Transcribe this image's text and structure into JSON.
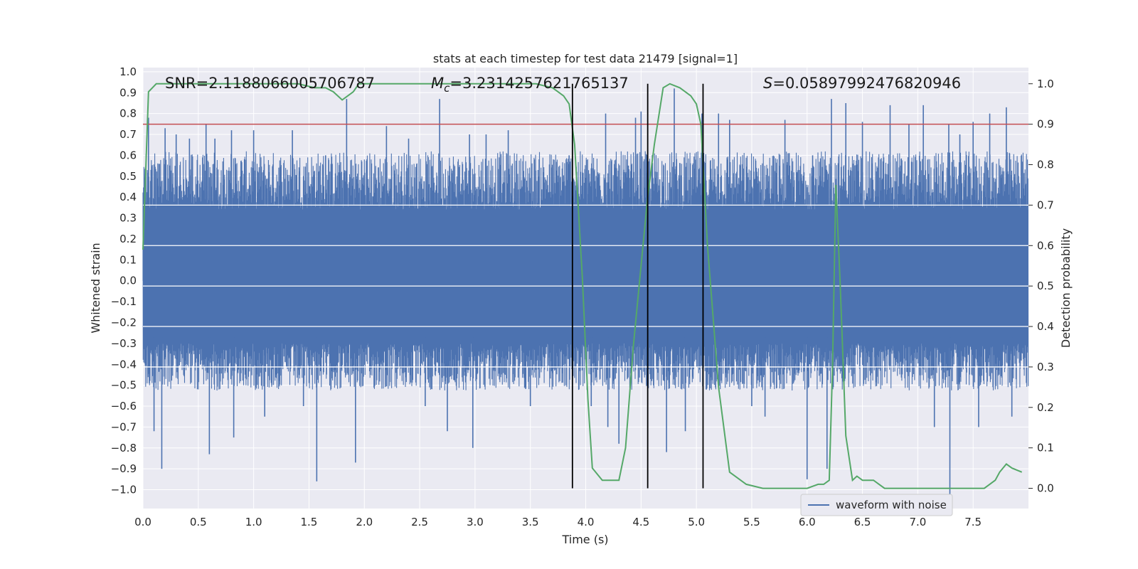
{
  "chart_data": {
    "type": "line",
    "title": "stats at each timestep for test data 21479 [signal=1]",
    "xlabel": "Time (s)",
    "ylabel_left": "Whitened strain",
    "ylabel_right": "Detection probability",
    "xlim": [
      0,
      8
    ],
    "ylim_left": [
      -1.09,
      1.02
    ],
    "ylim_right": [
      -0.05,
      1.04
    ],
    "x_ticks": [
      "0.0",
      "0.5",
      "1.0",
      "1.5",
      "2.0",
      "2.5",
      "3.0",
      "3.5",
      "4.0",
      "4.5",
      "5.0",
      "5.5",
      "6.0",
      "6.5",
      "7.0",
      "7.5"
    ],
    "y_left_ticks": [
      "1.0",
      "0.9",
      "0.8",
      "0.7",
      "0.6",
      "0.5",
      "0.4",
      "0.3",
      "0.2",
      "0.1",
      "0.0",
      "−0.1",
      "−0.2",
      "−0.3",
      "−0.4",
      "−0.5",
      "−0.6",
      "−0.7",
      "−0.8",
      "−0.9",
      "−1.0"
    ],
    "y_right_ticks": [
      "0.0",
      "0.1",
      "0.2",
      "0.3",
      "0.4",
      "0.5",
      "0.6",
      "0.7",
      "0.8",
      "0.9",
      "1.0"
    ],
    "annotations": {
      "snr": "SNR=2.1188066005706787",
      "mc_symbol": "M",
      "mc_sub": "c",
      "mc_value": "=3.2314257621765137",
      "s_symbol": "S",
      "s_value": "=0.05897992476820946"
    },
    "legend": {
      "label": "waveform with noise",
      "location": "lower-right"
    },
    "threshold": 0.9,
    "vertical_lines": [
      3.88,
      4.56,
      5.06
    ],
    "series": [
      {
        "name": "waveform with noise",
        "color": "#4c72b0",
        "envelope_pos": 0.62,
        "envelope_neg": -0.5,
        "spikes": [
          [
            0.05,
            0.78
          ],
          [
            0.1,
            -0.72
          ],
          [
            0.17,
            -0.9
          ],
          [
            0.2,
            0.73
          ],
          [
            0.3,
            0.7
          ],
          [
            0.42,
            0.68
          ],
          [
            0.57,
            0.75
          ],
          [
            0.6,
            -0.83
          ],
          [
            0.65,
            0.68
          ],
          [
            0.8,
            0.72
          ],
          [
            0.82,
            -0.75
          ],
          [
            1.0,
            0.72
          ],
          [
            1.1,
            -0.65
          ],
          [
            1.35,
            0.72
          ],
          [
            1.45,
            -0.6
          ],
          [
            1.57,
            -0.96
          ],
          [
            1.65,
            0.6
          ],
          [
            1.84,
            0.87
          ],
          [
            1.92,
            -0.87
          ],
          [
            2.2,
            0.74
          ],
          [
            2.4,
            0.68
          ],
          [
            2.55,
            -0.6
          ],
          [
            2.68,
            0.87
          ],
          [
            2.75,
            -0.72
          ],
          [
            2.95,
            0.7
          ],
          [
            2.98,
            -0.8
          ],
          [
            3.1,
            0.7
          ],
          [
            3.3,
            0.72
          ],
          [
            3.5,
            -0.6
          ],
          [
            3.85,
            0.6
          ],
          [
            4.05,
            -0.6
          ],
          [
            4.18,
            0.8
          ],
          [
            4.2,
            -0.7
          ],
          [
            4.3,
            -0.78
          ],
          [
            4.45,
            0.78
          ],
          [
            4.5,
            0.81
          ],
          [
            4.55,
            -0.5
          ],
          [
            4.73,
            -0.82
          ],
          [
            4.8,
            0.92
          ],
          [
            4.9,
            -0.72
          ],
          [
            5.05,
            0.8
          ],
          [
            5.2,
            0.8
          ],
          [
            5.3,
            0.77
          ],
          [
            5.5,
            -0.6
          ],
          [
            5.62,
            -0.65
          ],
          [
            5.8,
            0.77
          ],
          [
            6.0,
            -0.95
          ],
          [
            6.05,
            0.6
          ],
          [
            6.18,
            -0.9
          ],
          [
            6.22,
            0.87
          ],
          [
            6.35,
            0.85
          ],
          [
            6.5,
            0.76
          ],
          [
            6.75,
            0.84
          ],
          [
            6.92,
            0.75
          ],
          [
            7.05,
            0.84
          ],
          [
            7.15,
            -0.7
          ],
          [
            7.28,
            0.75
          ],
          [
            7.29,
            -1.04
          ],
          [
            7.38,
            0.7
          ],
          [
            7.5,
            0.76
          ],
          [
            7.55,
            -0.7
          ],
          [
            7.65,
            0.8
          ],
          [
            7.8,
            0.83
          ],
          [
            7.85,
            -0.65
          ]
        ]
      },
      {
        "name": "Detection probability",
        "color": "#55a868",
        "x": [
          0,
          0.05,
          0.12,
          0.3,
          0.5,
          0.8,
          1.0,
          1.2,
          1.4,
          1.55,
          1.65,
          1.72,
          1.8,
          1.85,
          1.9,
          1.95,
          2.05,
          2.3,
          2.8,
          3.3,
          3.55,
          3.7,
          3.8,
          3.85,
          3.9,
          3.97,
          4.02,
          4.06,
          4.15,
          4.22,
          4.3,
          4.36,
          4.43,
          4.5,
          4.56,
          4.62,
          4.7,
          4.76,
          4.85,
          4.95,
          5.0,
          5.04,
          5.1,
          5.2,
          5.3,
          5.45,
          5.6,
          5.8,
          6.0,
          6.1,
          6.15,
          6.2,
          6.23,
          6.26,
          6.3,
          6.35,
          6.41,
          6.45,
          6.5,
          6.55,
          6.6,
          6.65,
          6.7,
          6.85,
          6.95,
          7.0,
          7.1,
          7.2,
          7.3,
          7.45,
          7.6,
          7.65,
          7.7,
          7.74,
          7.8,
          7.85,
          7.94
        ],
        "y": [
          0.59,
          0.98,
          1.0,
          1.0,
          1.0,
          1.0,
          1.0,
          1.0,
          1.0,
          0.99,
          0.99,
          0.98,
          0.96,
          0.97,
          0.98,
          1.0,
          1.0,
          1.0,
          1.0,
          1.0,
          1.0,
          0.99,
          0.97,
          0.95,
          0.85,
          0.52,
          0.22,
          0.05,
          0.02,
          0.02,
          0.02,
          0.1,
          0.35,
          0.55,
          0.72,
          0.85,
          0.99,
          1.0,
          0.99,
          0.97,
          0.95,
          0.9,
          0.6,
          0.25,
          0.04,
          0.01,
          0.0,
          0.0,
          0.0,
          0.01,
          0.01,
          0.02,
          0.3,
          0.75,
          0.5,
          0.13,
          0.02,
          0.03,
          0.02,
          0.02,
          0.02,
          0.01,
          0.0,
          0.0,
          0.0,
          0.0,
          0.0,
          0.0,
          0.0,
          0.0,
          0.0,
          0.01,
          0.02,
          0.04,
          0.06,
          0.05,
          0.04
        ]
      }
    ]
  }
}
